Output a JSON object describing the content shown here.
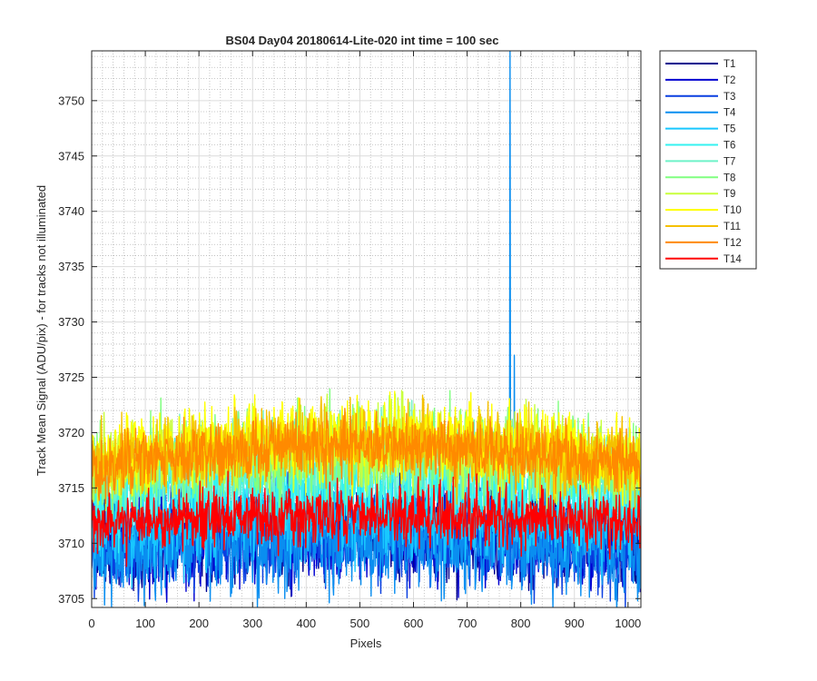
{
  "chart_data": {
    "type": "line",
    "title": "BS04 Day04 20180614-Lite-020 int time = 100 sec",
    "xlabel": "Pixels",
    "ylabel": "Track Mean Signal (ADU/pix) - for tracks not illuminated",
    "xlim": [
      0,
      1024
    ],
    "ylim": [
      3704.2,
      3754.5
    ],
    "x_ticks": [
      0,
      100,
      200,
      300,
      400,
      500,
      600,
      700,
      800,
      900,
      1000
    ],
    "y_ticks": [
      3705,
      3710,
      3715,
      3720,
      3725,
      3730,
      3735,
      3740,
      3745,
      3750
    ],
    "grid": "major and minor",
    "legend_position": "outside-right",
    "series": [
      {
        "name": "T1",
        "color": "#00008f",
        "mean": 3711.0,
        "noise": 3.0,
        "sag": 1.0
      },
      {
        "name": "T2",
        "color": "#0000d0",
        "mean": 3711.0,
        "noise": 3.0,
        "sag": 1.0
      },
      {
        "name": "T3",
        "color": "#0a3fe0",
        "mean": 3710.6,
        "noise": 3.0,
        "sag": 1.0
      },
      {
        "name": "T4",
        "color": "#0a8ef0",
        "mean": 3710.2,
        "noise": 3.0,
        "sag": 1.0,
        "spikes": [
          {
            "x": 780,
            "y": 3754.5
          },
          {
            "x": 788,
            "y": 3727.0
          }
        ]
      },
      {
        "name": "T5",
        "color": "#18c8ff",
        "mean": 3712.5,
        "noise": 2.6,
        "sag": 1.0
      },
      {
        "name": "T6",
        "color": "#35f2f0",
        "mean": 3715.5,
        "noise": 2.6,
        "sag": 1.5
      },
      {
        "name": "T7",
        "color": "#6ef2c8",
        "mean": 3717.5,
        "noise": 2.8,
        "sag": 1.8
      },
      {
        "name": "T8",
        "color": "#80ff80",
        "mean": 3718.5,
        "noise": 2.8,
        "sag": 1.8
      },
      {
        "name": "T9",
        "color": "#c8ff3c",
        "mean": 3718.8,
        "noise": 2.6,
        "sag": 1.8
      },
      {
        "name": "T10",
        "color": "#ffff00",
        "mean": 3719.5,
        "noise": 2.5,
        "sag": 1.8
      },
      {
        "name": "T11",
        "color": "#f5c000",
        "mean": 3719.0,
        "noise": 2.3,
        "sag": 1.8
      },
      {
        "name": "T12",
        "color": "#ff8a00",
        "mean": 3718.7,
        "noise": 1.9,
        "sag": 1.8
      },
      {
        "name": "T14",
        "color": "#ff0000",
        "mean": 3712.6,
        "noise": 1.9,
        "sag": 1.0
      }
    ]
  }
}
